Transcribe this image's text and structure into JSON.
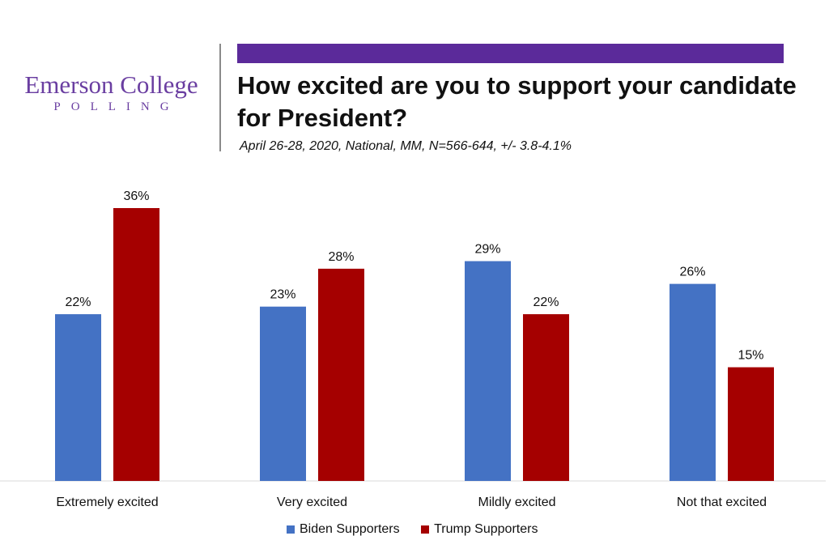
{
  "logo": {
    "line1": "Emerson College",
    "line2": "POLLING"
  },
  "title": "How excited are you to support your candidate for President?",
  "subtitle": "April 26-28, 2020, National, MM, N=566-644, +/- 3.8-4.1%",
  "colors": {
    "biden": "#4472c4",
    "trump": "#a50000",
    "accent": "#5b2a9a"
  },
  "chart_data": {
    "type": "bar",
    "categories": [
      "Extremely excited",
      "Very excited",
      "Mildly excited",
      "Not that excited"
    ],
    "series": [
      {
        "name": "Biden Supporters",
        "values": [
          22,
          23,
          29,
          26
        ]
      },
      {
        "name": "Trump Supporters",
        "values": [
          36,
          28,
          22,
          15
        ]
      }
    ],
    "value_suffix": "%",
    "ylim": [
      0,
      36
    ],
    "grid": false,
    "legend": "bottom"
  }
}
